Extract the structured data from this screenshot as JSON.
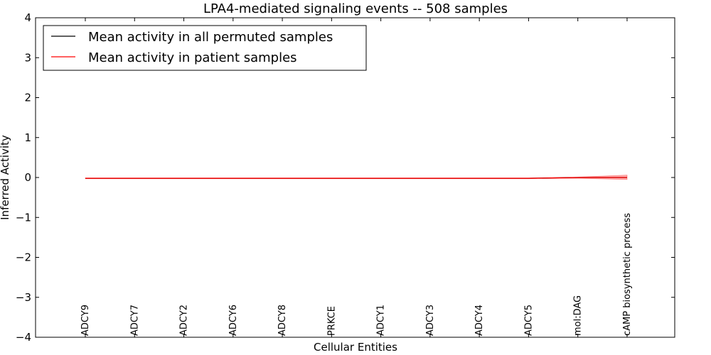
{
  "chart_data": {
    "type": "line",
    "title": "LPA4-mediated signaling events -- 508 samples",
    "xlabel": "Cellular Entities",
    "ylabel": "Inferred Activity",
    "ylim": [
      -4,
      4
    ],
    "yticks": [
      -4,
      -3,
      -2,
      -1,
      0,
      1,
      2,
      3,
      4
    ],
    "ytick_labels": [
      "−4",
      "−3",
      "−2",
      "−1",
      "0",
      "1",
      "2",
      "3",
      "4"
    ],
    "categories": [
      "ADCY9",
      "ADCY7",
      "ADCY2",
      "ADCY6",
      "ADCY8",
      "PRKCE",
      "ADCY1",
      "ADCY3",
      "ADCY4",
      "ADCY5",
      "mol:DAG",
      "cAMP biosynthetic process"
    ],
    "series": [
      {
        "name": "Mean activity in all permuted samples",
        "color": "#000000",
        "values": [
          -0.02,
          -0.02,
          -0.02,
          -0.02,
          -0.02,
          -0.02,
          -0.02,
          -0.02,
          -0.02,
          -0.02,
          0.0,
          0.0
        ]
      },
      {
        "name": "Mean activity in patient samples",
        "color": "#ff0000",
        "values": [
          -0.02,
          -0.02,
          -0.02,
          -0.02,
          -0.02,
          -0.02,
          -0.02,
          -0.02,
          -0.02,
          -0.02,
          0.0,
          0.0
        ],
        "band_lower": [
          -0.03,
          -0.03,
          -0.03,
          -0.03,
          -0.03,
          -0.03,
          -0.03,
          -0.03,
          -0.03,
          -0.03,
          -0.02,
          -0.05
        ],
        "band_upper": [
          -0.01,
          -0.01,
          -0.01,
          -0.01,
          -0.01,
          -0.01,
          -0.01,
          -0.01,
          -0.01,
          -0.01,
          0.01,
          0.06
        ]
      }
    ],
    "legend_position": "top-left",
    "grid": false
  }
}
